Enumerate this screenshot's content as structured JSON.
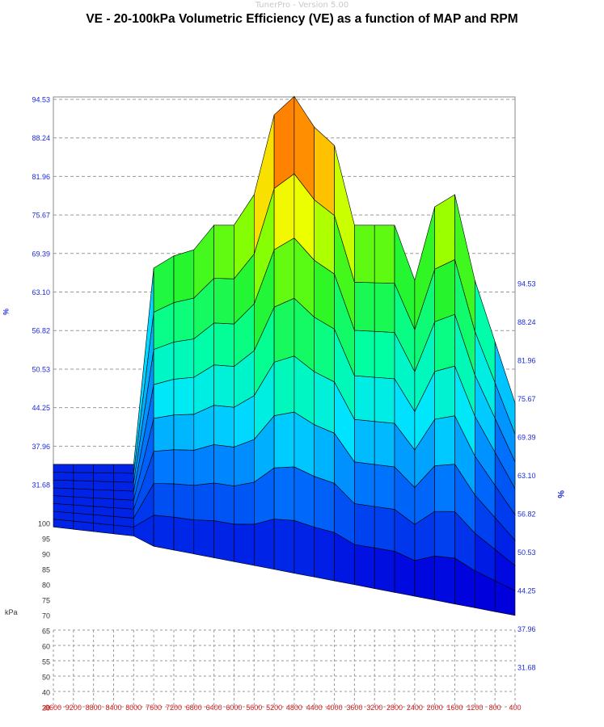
{
  "window": {
    "app_title": "TunerPro - Version 5.00"
  },
  "chart_data": {
    "type": "surface",
    "title": "VE - 20-100kPa Volumetric Efficiency (VE) as a function of MAP and RPM",
    "z_axis_left": {
      "ticks": [
        "94.53",
        "88.24",
        "81.96",
        "75.67",
        "69.39",
        "63.10",
        "56.82",
        "50.53",
        "44.25",
        "37.96",
        "31.68"
      ],
      "label": "%"
    },
    "z_axis_right": {
      "ticks": [
        "94.53",
        "88.24",
        "81.96",
        "75.67",
        "69.39",
        "63.10",
        "56.82",
        "50.53",
        "44.25",
        "37.96",
        "31.68"
      ],
      "label": "%"
    },
    "map_axis": {
      "label": "kPa",
      "ticks": [
        "100",
        "95",
        "90",
        "85",
        "80",
        "75",
        "70",
        "65",
        "60",
        "55",
        "50",
        "40",
        "30",
        "20"
      ]
    },
    "rpm_axis": {
      "ticks": [
        "9600",
        "9200",
        "8800",
        "8400",
        "8000",
        "7600",
        "7200",
        "6800",
        "6400",
        "6000",
        "5600",
        "5200",
        "4800",
        "4400",
        "4000",
        "3600",
        "3200",
        "2800",
        "2400",
        "2000",
        "1600",
        "1200",
        "800",
        "400"
      ]
    },
    "rpm": [
      9600,
      9200,
      8800,
      8400,
      8000,
      7600,
      7200,
      6800,
      6400,
      6000,
      5600,
      5200,
      4800,
      4400,
      4000,
      3600,
      3200,
      2800,
      2400,
      2000,
      1600,
      1200,
      800,
      400
    ],
    "ve_ridge_at_100kPa": [
      35,
      35,
      35,
      35,
      35,
      67,
      69,
      70,
      74,
      74,
      79,
      92,
      95,
      90,
      87,
      74,
      74,
      74,
      65,
      77,
      79,
      65,
      55,
      45
    ],
    "z_range": [
      31.68,
      94.53
    ]
  }
}
